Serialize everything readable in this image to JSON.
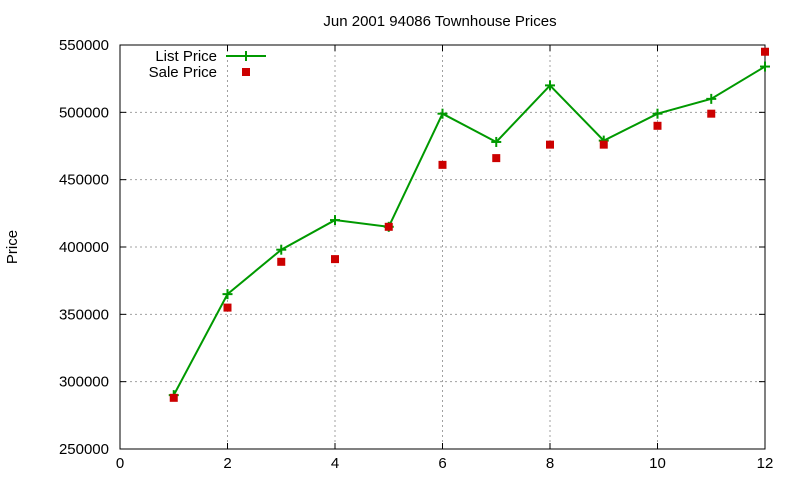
{
  "chart_data": {
    "type": "line",
    "title": "Jun 2001 94086 Townhouse Prices",
    "xlabel": "",
    "ylabel": "Price",
    "xlim": [
      0,
      12
    ],
    "ylim": [
      250000,
      550000
    ],
    "xticks": [
      0,
      2,
      4,
      6,
      8,
      10,
      12
    ],
    "yticks": [
      250000,
      300000,
      350000,
      400000,
      450000,
      500000,
      550000
    ],
    "grid": true,
    "legend_position": "top-left",
    "series": [
      {
        "name": "List Price",
        "style": "linespoints",
        "marker": "plus",
        "color": "#009900",
        "x": [
          1,
          2,
          3,
          4,
          5,
          6,
          7,
          8,
          9,
          10,
          11,
          12
        ],
        "y": [
          290000,
          365000,
          398000,
          420000,
          415000,
          499000,
          478000,
          520000,
          479000,
          499000,
          510000,
          534000
        ]
      },
      {
        "name": "Sale Price",
        "style": "points",
        "marker": "square",
        "color": "#cc0000",
        "x": [
          1,
          2,
          3,
          4,
          5,
          6,
          7,
          8,
          9,
          10,
          11,
          12
        ],
        "y": [
          288000,
          355000,
          389000,
          391000,
          415000,
          461000,
          466000,
          476000,
          476000,
          490000,
          499000,
          545000
        ]
      }
    ]
  }
}
